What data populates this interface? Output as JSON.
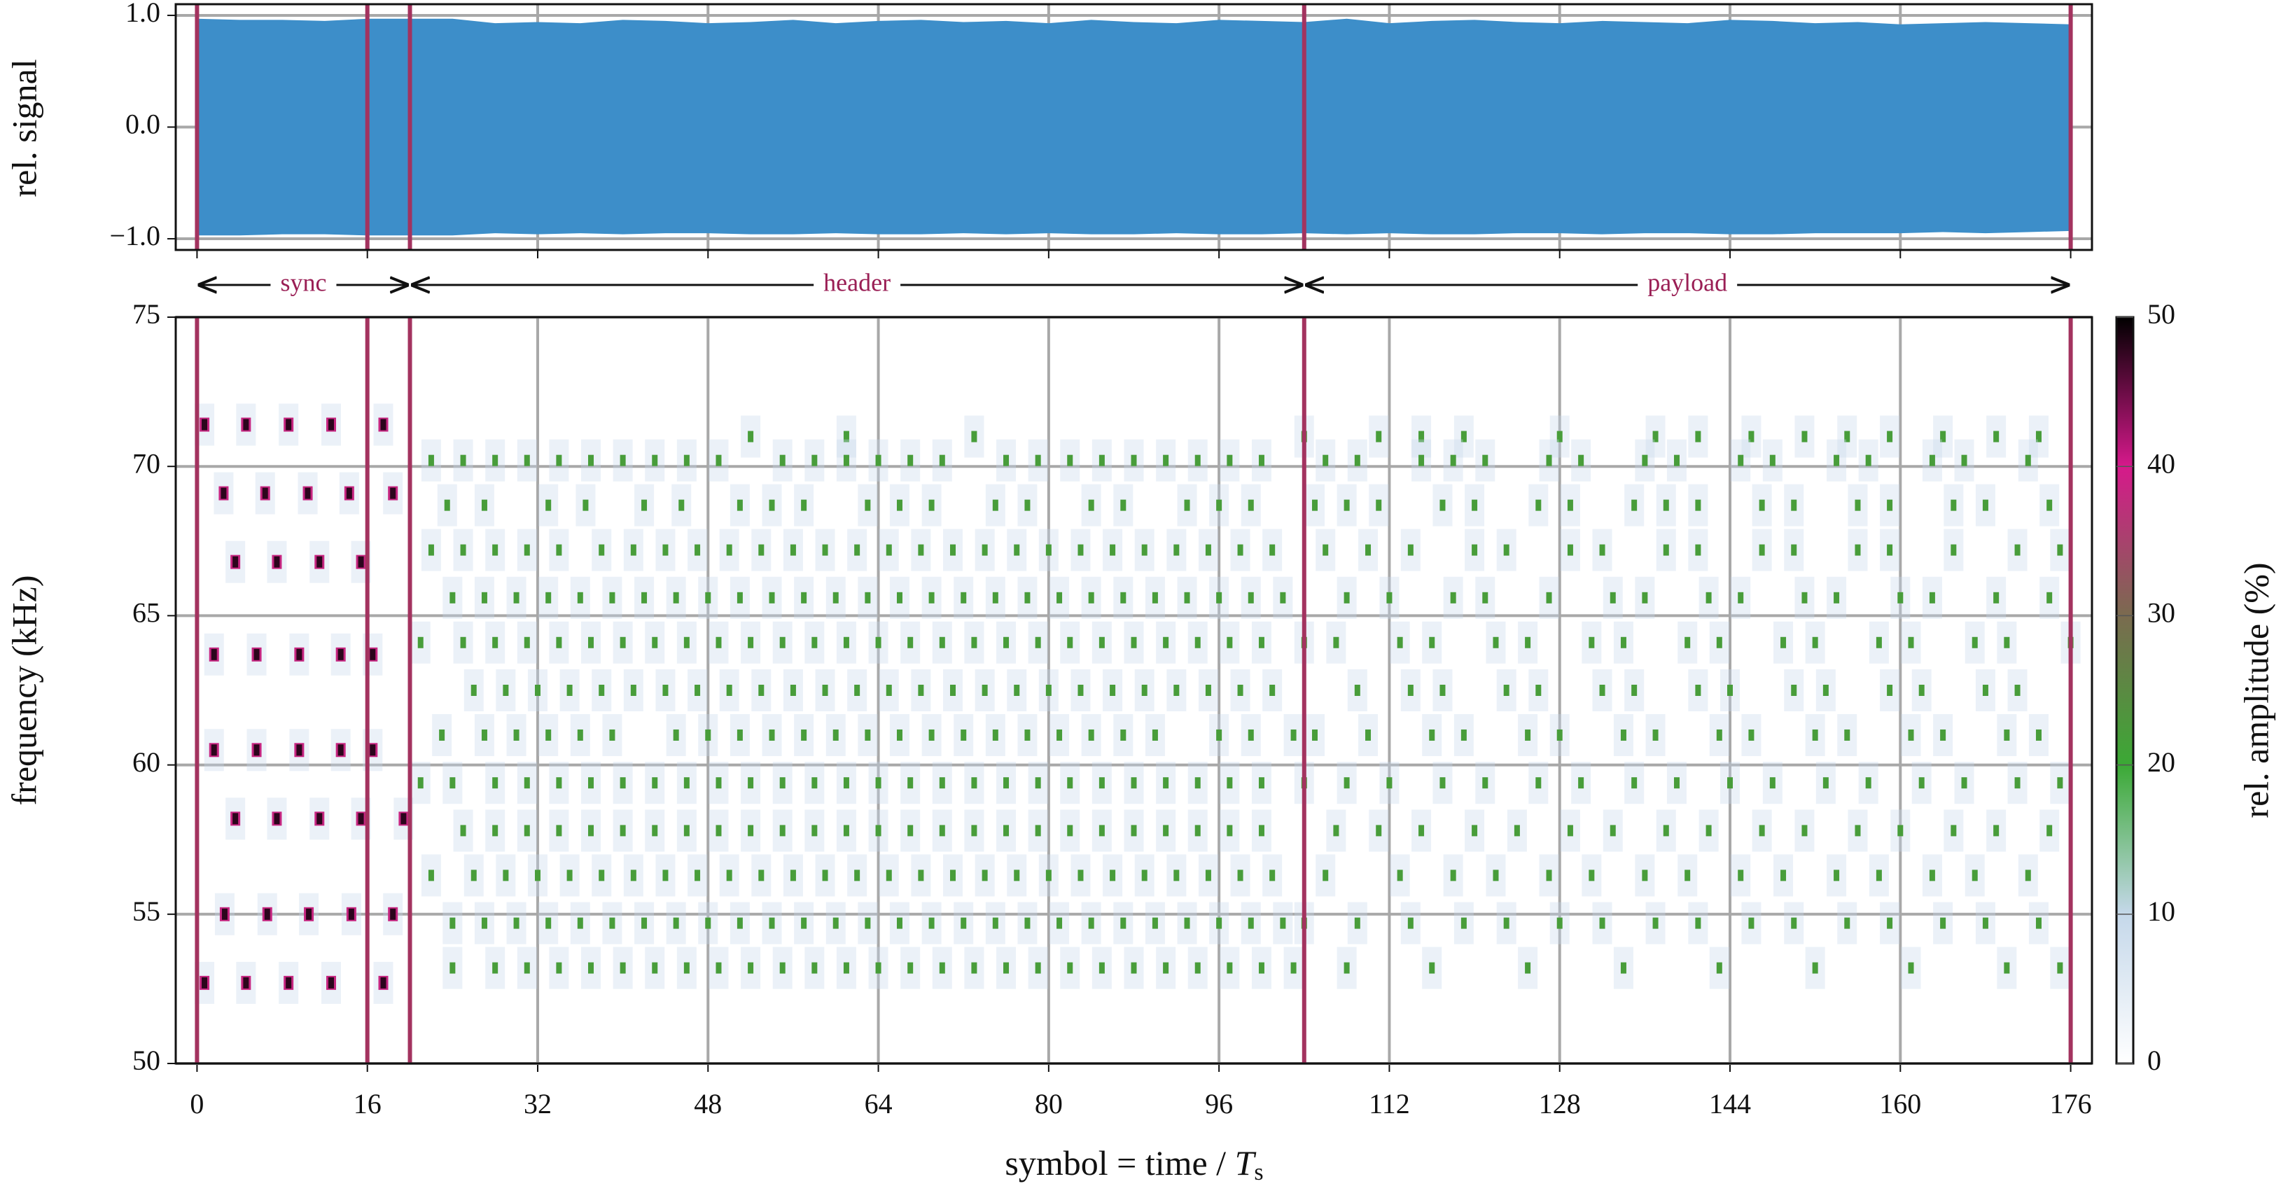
{
  "chart_data": [
    {
      "type": "area",
      "ylabel": "rel. signal",
      "xlim": [
        -2,
        178
      ],
      "ylim": [
        -1.1,
        1.1
      ],
      "xticks": [
        0,
        16,
        32,
        48,
        64,
        80,
        96,
        112,
        128,
        144,
        160,
        176
      ],
      "yticks": [
        {
          "value": -1,
          "label": "−1.0"
        },
        {
          "value": 0,
          "label": "0.0"
        },
        {
          "value": 1,
          "label": "1.0"
        }
      ],
      "grid": true,
      "color": "#3d8ec9",
      "markers": [
        0,
        16,
        20,
        104,
        176
      ],
      "marker_color": "#a3335f",
      "x": [
        0,
        4,
        8,
        12,
        16,
        20,
        24,
        28,
        32,
        36,
        40,
        44,
        48,
        52,
        56,
        60,
        64,
        68,
        72,
        76,
        80,
        84,
        88,
        92,
        96,
        100,
        104,
        108,
        112,
        116,
        120,
        124,
        128,
        132,
        136,
        140,
        144,
        148,
        152,
        156,
        160,
        164,
        168,
        172,
        176
      ],
      "series": [
        {
          "values": [
            0.97,
            0.96,
            0.96,
            0.95,
            0.97,
            0.97,
            0.97,
            0.93,
            0.94,
            0.93,
            0.96,
            0.95,
            0.93,
            0.94,
            0.96,
            0.93,
            0.95,
            0.96,
            0.94,
            0.95,
            0.93,
            0.96,
            0.94,
            0.93,
            0.96,
            0.95,
            0.94,
            0.97,
            0.93,
            0.95,
            0.96,
            0.94,
            0.93,
            0.95,
            0.94,
            0.93,
            0.96,
            0.95,
            0.93,
            0.94,
            0.92,
            0.93,
            0.94,
            0.93,
            0.92
          ]
        },
        {
          "values": [
            -0.97,
            -0.97,
            -0.96,
            -0.96,
            -0.97,
            -0.97,
            -0.97,
            -0.95,
            -0.96,
            -0.95,
            -0.96,
            -0.95,
            -0.95,
            -0.96,
            -0.96,
            -0.95,
            -0.96,
            -0.96,
            -0.95,
            -0.96,
            -0.95,
            -0.96,
            -0.96,
            -0.95,
            -0.96,
            -0.96,
            -0.95,
            -0.96,
            -0.95,
            -0.96,
            -0.96,
            -0.95,
            -0.95,
            -0.96,
            -0.95,
            -0.95,
            -0.96,
            -0.96,
            -0.95,
            -0.95,
            -0.95,
            -0.94,
            -0.95,
            -0.94,
            -0.93
          ]
        }
      ]
    },
    {
      "type": "spectrogram",
      "ylabel": "frequency (kHz)",
      "xlabel": "symbol = time / ",
      "xlabel_var": "T",
      "xlabel_sub": "s",
      "xlim": [
        -2,
        178
      ],
      "ylim": [
        50,
        75
      ],
      "xticks": [
        0,
        16,
        32,
        48,
        64,
        80,
        96,
        112,
        128,
        144,
        160,
        176
      ],
      "yticks": [
        50,
        55,
        60,
        65,
        70,
        75
      ],
      "grid": true,
      "markers": [
        0,
        16,
        20,
        104,
        176
      ],
      "marker_color": "#a3335f",
      "regions": [
        {
          "label": "sync",
          "start": 0,
          "end": 20
        },
        {
          "label": "header",
          "start": 20,
          "end": 104
        },
        {
          "label": "payload",
          "start": 104,
          "end": 176
        }
      ],
      "colorbar": {
        "label": "rel. amplitude (%)",
        "lim": [
          0,
          50
        ],
        "ticks": [
          0,
          10,
          20,
          30,
          40,
          50
        ],
        "colors": [
          "#ffffff",
          "#c5d8ea",
          "#3ba935",
          "#7a6b4f",
          "#d6198b",
          "#000000"
        ]
      },
      "tones": [
        {
          "f": 71.4,
          "amplitude": 48,
          "x": [
            0.7,
            4.6,
            8.6,
            12.6,
            17.5
          ]
        },
        {
          "f": 69.1,
          "amplitude": 48,
          "x": [
            2.5,
            6.4,
            10.4,
            14.3,
            18.4
          ]
        },
        {
          "f": 66.8,
          "amplitude": 48,
          "x": [
            3.6,
            7.5,
            11.5,
            15.4
          ]
        },
        {
          "f": 63.7,
          "amplitude": 48,
          "x": [
            1.6,
            5.6,
            9.6,
            13.5,
            16.5
          ]
        },
        {
          "f": 60.5,
          "amplitude": 48,
          "x": [
            1.6,
            5.6,
            9.6,
            13.5,
            16.5
          ]
        },
        {
          "f": 58.2,
          "amplitude": 48,
          "x": [
            3.6,
            7.5,
            11.5,
            15.4,
            19.4
          ]
        },
        {
          "f": 55.0,
          "amplitude": 48,
          "x": [
            2.6,
            6.6,
            10.5,
            14.5,
            18.4
          ]
        },
        {
          "f": 52.7,
          "amplitude": 48,
          "x": [
            0.7,
            4.6,
            8.6,
            12.6,
            17.5
          ]
        },
        {
          "f": 71.0,
          "amplitude": 22,
          "x": [
            52,
            61,
            73,
            104,
            111,
            115,
            119,
            128,
            137,
            141,
            146,
            151,
            155,
            159,
            164,
            169,
            173
          ]
        },
        {
          "f": 70.2,
          "amplitude": 22,
          "x": [
            22,
            25,
            28,
            31,
            34,
            37,
            40,
            43,
            46,
            49,
            55,
            58,
            61,
            64,
            67,
            70,
            76,
            79,
            82,
            85,
            88,
            91,
            94,
            97,
            100,
            106,
            109,
            115,
            118,
            121,
            127,
            130,
            136,
            139,
            145,
            148,
            154,
            157,
            163,
            166,
            172
          ]
        },
        {
          "f": 68.7,
          "amplitude": 22,
          "x": [
            23.5,
            27,
            33,
            36.5,
            42,
            45.5,
            51,
            54,
            57,
            63,
            66,
            69,
            75,
            78,
            84,
            87,
            93,
            96,
            99,
            105,
            108,
            111,
            117,
            120,
            126,
            129,
            135,
            138,
            141,
            147,
            150,
            156,
            159,
            165,
            168,
            174
          ]
        },
        {
          "f": 67.2,
          "amplitude": 22,
          "x": [
            22,
            25,
            28,
            31,
            34,
            38,
            41,
            44,
            47,
            50,
            53,
            56,
            59,
            62,
            65,
            68,
            71,
            74,
            77,
            80,
            83,
            86,
            89,
            92,
            95,
            98,
            101,
            106,
            110,
            114,
            120,
            123,
            129,
            132,
            138,
            141,
            147,
            150,
            156,
            159,
            165,
            171,
            175
          ]
        },
        {
          "f": 65.6,
          "amplitude": 22,
          "x": [
            24,
            27,
            30,
            33,
            36,
            39,
            42,
            45,
            48,
            51,
            54,
            57,
            60,
            63,
            66,
            69,
            72,
            75,
            78,
            81,
            84,
            87,
            90,
            93,
            96,
            99,
            102,
            108,
            112,
            118,
            121,
            127,
            133,
            136,
            142,
            145,
            151,
            154,
            160,
            163,
            169,
            174
          ]
        },
        {
          "f": 64.1,
          "amplitude": 22,
          "x": [
            21,
            25,
            28,
            31,
            34,
            37,
            40,
            43,
            46,
            49,
            52,
            55,
            58,
            61,
            64,
            67,
            70,
            73,
            76,
            79,
            82,
            85,
            88,
            91,
            94,
            97,
            100,
            104,
            107,
            113,
            116,
            122,
            125,
            131,
            134,
            140,
            143,
            149,
            152,
            158,
            161,
            167,
            170,
            176
          ]
        },
        {
          "f": 62.5,
          "amplitude": 22,
          "x": [
            26,
            29,
            32,
            35,
            38,
            41,
            44,
            47,
            50,
            53,
            56,
            59,
            62,
            65,
            68,
            71,
            74,
            77,
            80,
            83,
            86,
            89,
            92,
            95,
            98,
            101,
            109,
            114,
            117,
            123,
            126,
            132,
            135,
            141,
            144,
            150,
            153,
            159,
            162,
            168,
            171
          ]
        },
        {
          "f": 61.0,
          "amplitude": 22,
          "x": [
            23,
            27,
            30,
            33,
            36,
            39,
            45,
            48,
            51,
            54,
            57,
            60,
            63,
            66,
            69,
            72,
            75,
            78,
            81,
            84,
            87,
            90,
            96,
            99,
            103,
            105,
            110,
            116,
            119,
            125,
            128,
            134,
            137,
            143,
            146,
            152,
            155,
            161,
            164,
            170,
            173
          ]
        },
        {
          "f": 59.4,
          "amplitude": 22,
          "x": [
            21,
            24,
            28,
            31,
            34,
            37,
            40,
            43,
            46,
            49,
            52,
            55,
            58,
            61,
            64,
            67,
            70,
            73,
            76,
            79,
            82,
            85,
            88,
            91,
            94,
            97,
            100,
            104,
            108,
            112,
            117,
            121,
            126,
            130,
            135,
            139,
            144,
            148,
            153,
            157,
            162,
            166,
            171,
            175
          ]
        },
        {
          "f": 57.8,
          "amplitude": 22,
          "x": [
            25,
            28,
            31,
            34,
            37,
            40,
            43,
            46,
            49,
            52,
            55,
            58,
            61,
            64,
            67,
            70,
            73,
            76,
            79,
            82,
            85,
            88,
            91,
            94,
            97,
            100,
            107,
            111,
            115,
            120,
            124,
            129,
            133,
            138,
            142,
            147,
            151,
            156,
            160,
            165,
            169,
            174
          ]
        },
        {
          "f": 56.3,
          "amplitude": 22,
          "x": [
            22,
            26,
            29,
            32,
            35,
            38,
            41,
            44,
            47,
            50,
            53,
            56,
            59,
            62,
            65,
            68,
            71,
            74,
            77,
            80,
            83,
            86,
            89,
            92,
            95,
            98,
            101,
            106,
            113,
            118,
            122,
            127,
            131,
            136,
            140,
            145,
            149,
            154,
            158,
            163,
            167,
            172
          ]
        },
        {
          "f": 54.7,
          "amplitude": 22,
          "x": [
            24,
            27,
            30,
            33,
            36,
            39,
            42,
            45,
            48,
            51,
            54,
            57,
            60,
            63,
            66,
            69,
            72,
            75,
            78,
            81,
            84,
            87,
            90,
            93,
            96,
            99,
            102,
            104,
            109,
            114,
            119,
            123,
            128,
            132,
            137,
            141,
            146,
            150,
            155,
            159,
            164,
            168,
            173
          ]
        },
        {
          "f": 53.2,
          "amplitude": 22,
          "x": [
            24,
            28,
            31,
            34,
            37,
            40,
            43,
            46,
            49,
            52,
            55,
            58,
            61,
            64,
            67,
            70,
            73,
            76,
            79,
            82,
            85,
            88,
            91,
            94,
            97,
            100,
            103,
            108,
            116,
            125,
            134,
            143,
            152,
            161,
            170,
            175
          ]
        }
      ]
    }
  ]
}
